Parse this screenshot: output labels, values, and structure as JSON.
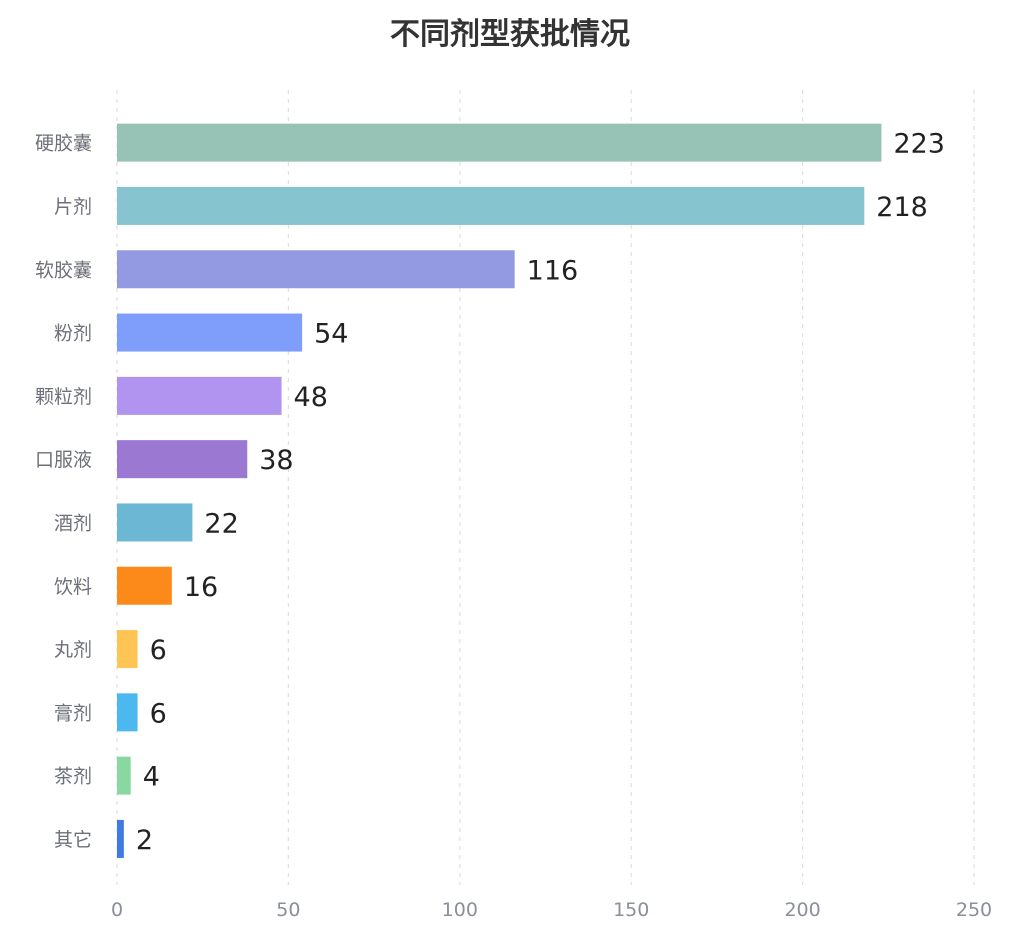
{
  "chart_data": {
    "type": "bar",
    "orientation": "horizontal",
    "title": "不同剂型获批情况",
    "xlabel": "",
    "ylabel": "",
    "xlim": [
      0,
      250
    ],
    "ticks": [
      0,
      50,
      100,
      150,
      200,
      250
    ],
    "tick_labels": [
      "0",
      "50",
      "100",
      "150",
      "200",
      "250"
    ],
    "grid": true,
    "legend": "none",
    "categories": [
      "硬胶囊",
      "片剂",
      "软胶囊",
      "粉剂",
      "颗粒剂",
      "口服液",
      "酒剂",
      "饮料",
      "丸剂",
      "膏剂",
      "茶剂",
      "其它"
    ],
    "values": [
      223,
      218,
      116,
      54,
      48,
      38,
      22,
      16,
      6,
      6,
      4,
      2
    ],
    "value_labels": [
      "223",
      "218",
      "116",
      "54",
      "48",
      "38",
      "22",
      "16",
      "6",
      "6",
      "4",
      "2"
    ],
    "colors": [
      "#96c3b5",
      "#86c4cf",
      "#939ae1",
      "#7f9dfb",
      "#b194f0",
      "#9b79d2",
      "#6bb7d4",
      "#fc8a1a",
      "#fec554",
      "#4bb8f0",
      "#8ad8a1",
      "#3f7ae5"
    ]
  }
}
